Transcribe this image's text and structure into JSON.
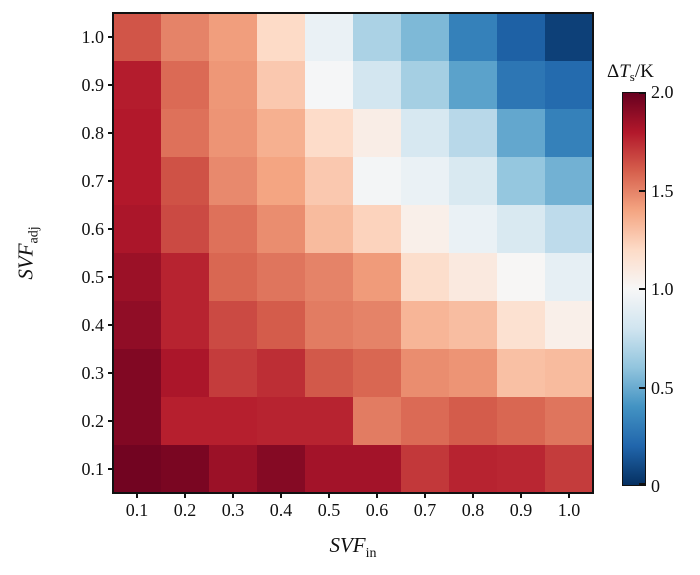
{
  "figure": {
    "background_color": "#ffffff",
    "frame_color": "#111111",
    "text_color": "#111111"
  },
  "chart_data": {
    "type": "heatmap",
    "title": "",
    "xlabel": {
      "main": "SVF",
      "sub": "in"
    },
    "ylabel": {
      "main": "SVF",
      "sub": "adj"
    },
    "x_categories": [
      "0.1",
      "0.2",
      "0.3",
      "0.4",
      "0.5",
      "0.6",
      "0.7",
      "0.8",
      "0.9",
      "1.0"
    ],
    "y_categories_top_to_bottom": [
      "1.0",
      "0.9",
      "0.8",
      "0.7",
      "0.6",
      "0.5",
      "0.4",
      "0.3",
      "0.2",
      "0.1"
    ],
    "values_rows_top_to_bottom": [
      [
        1.63,
        1.5,
        1.42,
        1.2,
        0.93,
        0.68,
        0.55,
        0.32,
        0.18,
        0.06
      ],
      [
        1.79,
        1.57,
        1.44,
        1.27,
        0.99,
        0.81,
        0.66,
        0.46,
        0.27,
        0.22
      ],
      [
        1.8,
        1.55,
        1.45,
        1.36,
        1.19,
        1.07,
        0.83,
        0.72,
        0.48,
        0.32
      ],
      [
        1.8,
        1.64,
        1.48,
        1.4,
        1.27,
        0.98,
        0.93,
        0.84,
        0.61,
        0.52
      ],
      [
        1.82,
        1.66,
        1.55,
        1.47,
        1.32,
        1.23,
        1.06,
        0.93,
        0.84,
        0.74
      ],
      [
        1.86,
        1.77,
        1.58,
        1.54,
        1.5,
        1.43,
        1.18,
        1.1,
        1.01,
        0.91
      ],
      [
        1.89,
        1.77,
        1.66,
        1.61,
        1.52,
        1.5,
        1.34,
        1.31,
        1.16,
        1.06
      ],
      [
        1.93,
        1.82,
        1.7,
        1.74,
        1.62,
        1.58,
        1.47,
        1.45,
        1.3,
        1.32
      ],
      [
        1.93,
        1.78,
        1.78,
        1.77,
        1.77,
        1.52,
        1.57,
        1.61,
        1.58,
        1.54
      ],
      [
        1.97,
        1.95,
        1.86,
        1.92,
        1.84,
        1.84,
        1.71,
        1.77,
        1.76,
        1.7
      ]
    ],
    "colorbar": {
      "label": {
        "prefix": "Δ",
        "main": "T",
        "sub": "s",
        "suffix": "/K"
      },
      "min": 0,
      "max": 2,
      "ticks": [
        {
          "label": "2.0",
          "value": 2.0
        },
        {
          "label": "1.5",
          "value": 1.5
        },
        {
          "label": "1.0",
          "value": 1.0
        },
        {
          "label": "0.5",
          "value": 0.5
        },
        {
          "label": "0",
          "value": 0.0
        }
      ]
    },
    "colormap": {
      "name": "RdBu_r",
      "stops": [
        {
          "value": 0.0,
          "color": "#053061"
        },
        {
          "value": 0.2,
          "color": "#2166ac"
        },
        {
          "value": 0.4,
          "color": "#4393c3"
        },
        {
          "value": 0.6,
          "color": "#92c5de"
        },
        {
          "value": 0.8,
          "color": "#d1e5f0"
        },
        {
          "value": 1.0,
          "color": "#f7f7f7"
        },
        {
          "value": 1.2,
          "color": "#fddbc7"
        },
        {
          "value": 1.4,
          "color": "#f4a582"
        },
        {
          "value": 1.6,
          "color": "#d6604d"
        },
        {
          "value": 1.8,
          "color": "#b2182b"
        },
        {
          "value": 2.0,
          "color": "#67001f"
        }
      ]
    },
    "legend": null,
    "grid": false
  }
}
